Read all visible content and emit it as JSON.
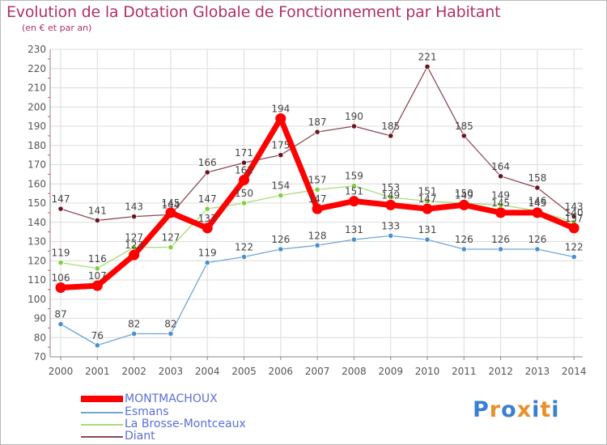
{
  "title": "Evolution de la Dotation Globale de Fonctionnement par Habitant",
  "subtitle": "(en € et par an)",
  "logo_text": "Proxiti",
  "chart_data": {
    "type": "line",
    "title": "Evolution de la Dotation Globale de Fonctionnement par Habitant",
    "ylabel": "(en € et par an)",
    "xlabel": "",
    "ylim": [
      70,
      230
    ],
    "y_ticks": [
      70,
      80,
      90,
      100,
      110,
      120,
      130,
      140,
      150,
      160,
      170,
      180,
      190,
      200,
      210,
      220,
      230
    ],
    "grid": true,
    "legend_position": "bottom-left",
    "categories": [
      "2000",
      "2001",
      "2002",
      "2003",
      "2004",
      "2005",
      "2006",
      "2007",
      "2008",
      "2009",
      "2010",
      "2011",
      "2012",
      "2013",
      "2014"
    ],
    "series": [
      {
        "name": "Diant",
        "color": "#6b1420",
        "line_color": "#8a4a52",
        "width": 1.3,
        "marker": 3.2,
        "values": [
          147,
          141,
          143,
          144,
          166,
          171,
          175,
          187,
          190,
          185,
          221,
          185,
          164,
          158,
          143
        ]
      },
      {
        "name": "La Brosse-Montceaux",
        "color": "#7fcf3a",
        "line_color": "#a6dc78",
        "width": 1.3,
        "marker": 3.2,
        "values": [
          119,
          116,
          127,
          127,
          147,
          150,
          154,
          157,
          159,
          153,
          151,
          150,
          149,
          146,
          140
        ]
      },
      {
        "name": "Esmans",
        "color": "#4a90d0",
        "line_color": "#6ea6d6",
        "width": 1.3,
        "marker": 3.2,
        "values": [
          87,
          76,
          82,
          82,
          119,
          122,
          126,
          128,
          131,
          133,
          131,
          126,
          126,
          126,
          122
        ]
      },
      {
        "name": "MONTMACHOUX",
        "color": "#ff0000",
        "line_color": "#ff0000",
        "width": 7,
        "marker": 6.5,
        "values": [
          106,
          107,
          123,
          145,
          137,
          162,
          194,
          147,
          151,
          149,
          147,
          149,
          145,
          145,
          137
        ]
      }
    ],
    "label_order": [
      "Diant",
      "La Brosse-Montceaux",
      "Esmans",
      "MONTMACHOUX"
    ]
  },
  "legend": [
    {
      "name": "MONTMACHOUX",
      "color": "#ff0000",
      "thick": true
    },
    {
      "name": "Esmans",
      "color": "#6ea6d6",
      "thick": false
    },
    {
      "name": "La Brosse-Montceaux",
      "color": "#a6dc78",
      "thick": false
    },
    {
      "name": "Diant",
      "color": "#8a4a52",
      "thick": false
    }
  ]
}
